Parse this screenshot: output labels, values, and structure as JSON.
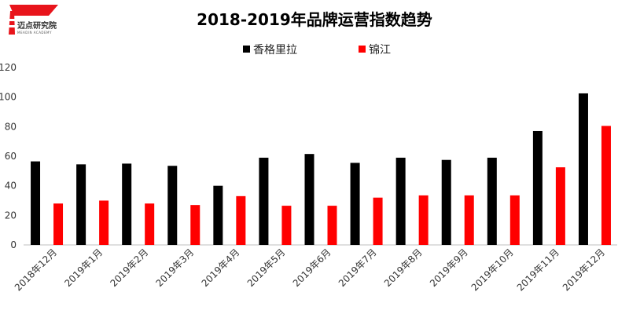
{
  "logo": {
    "name": "迈点研究院",
    "subtitle": "MEADIN ACADEMY",
    "accent_color": "#e8141b"
  },
  "chart_data": {
    "type": "bar",
    "title": "2018-2019年品牌运营指数趋势",
    "categories": [
      "2018年12月",
      "2019年1月",
      "2019年2月",
      "2019年3月",
      "2019年4月",
      "2019年5月",
      "2019年6月",
      "2019年7月",
      "2019年8月",
      "2019年9月",
      "2019年10月",
      "2019年11月",
      "2019年12月"
    ],
    "series": [
      {
        "name": "香格里拉",
        "color": "#000000",
        "values": [
          56.5,
          54.5,
          55,
          53.5,
          40,
          59,
          61.5,
          55.5,
          59,
          57.5,
          59,
          77,
          102.5
        ]
      },
      {
        "name": "锦江",
        "color": "#ff0000",
        "values": [
          28,
          30,
          28,
          27,
          33,
          26.5,
          26.5,
          32,
          33.5,
          33.5,
          33.5,
          52.5,
          80.5
        ]
      }
    ],
    "ylim": [
      0,
      120
    ],
    "yticks": [
      0,
      20,
      40,
      60,
      80,
      100,
      120
    ],
    "xlabel": "",
    "ylabel": "",
    "grid": false,
    "legend_position": "top-center"
  }
}
